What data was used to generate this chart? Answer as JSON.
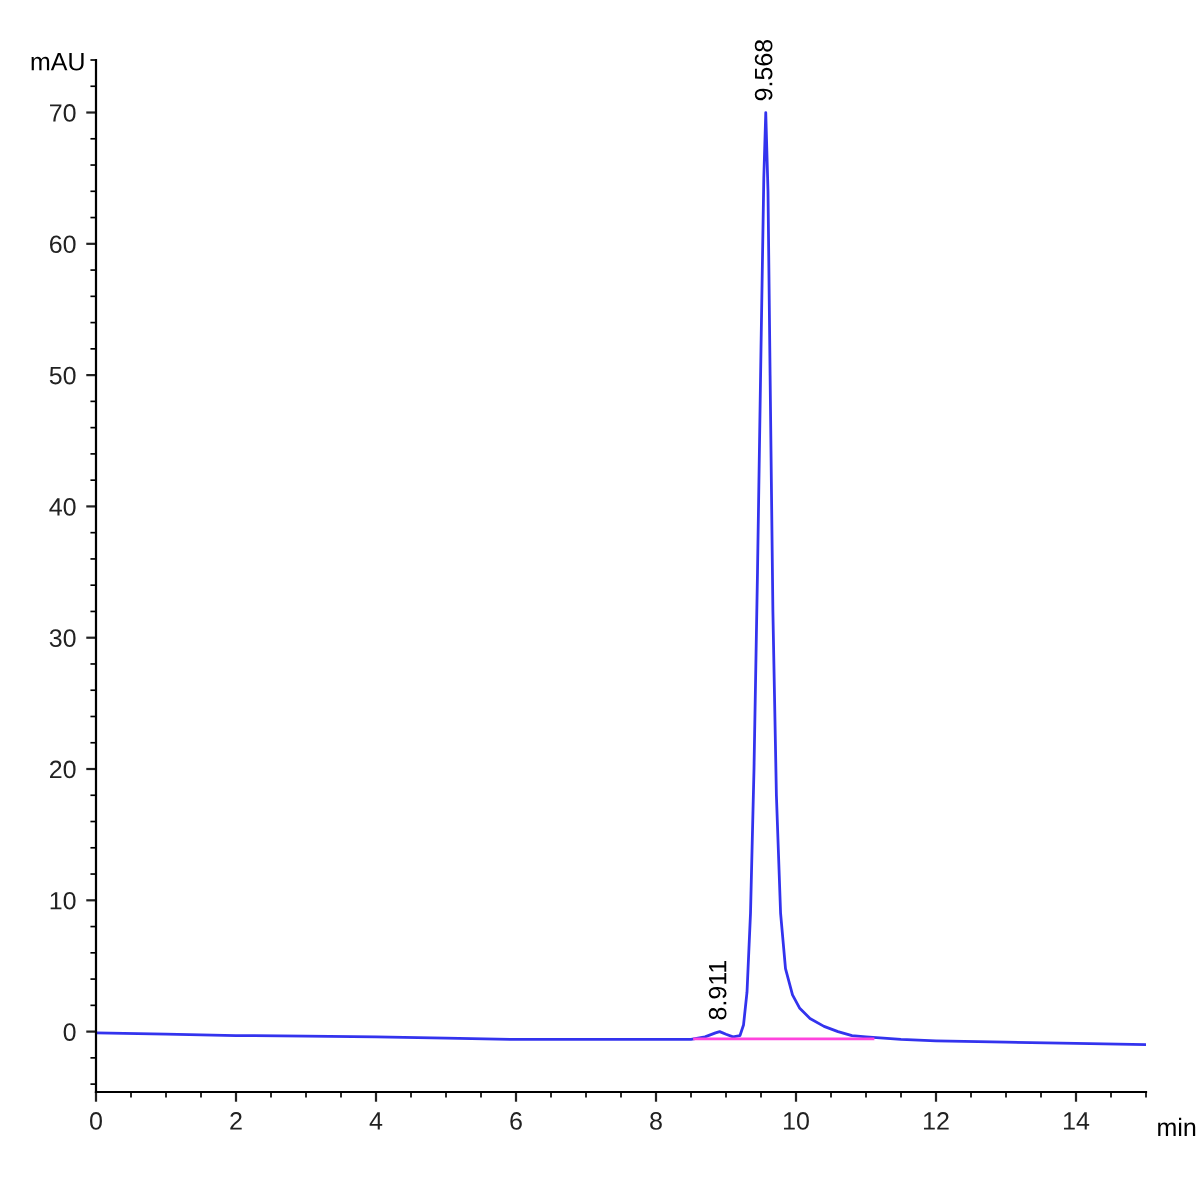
{
  "chart_data": {
    "type": "line",
    "xlabel": "min",
    "ylabel": "mAU",
    "xlim": [
      0,
      15
    ],
    "ylim": [
      -4.6,
      74
    ],
    "xticks": [
      0,
      2,
      4,
      6,
      8,
      10,
      12,
      14
    ],
    "yticks": [
      0,
      10,
      20,
      30,
      40,
      50,
      60,
      70
    ],
    "grid": false,
    "legend": false,
    "line_style": "solid",
    "marker": "none",
    "series": [
      {
        "color": "#3333ee",
        "x": [
          0,
          1,
          2,
          3,
          4,
          5,
          6,
          7,
          8,
          8.5,
          8.7,
          8.85,
          8.91,
          9.0,
          9.1,
          9.2,
          9.25,
          9.3,
          9.35,
          9.4,
          9.45,
          9.5,
          9.54,
          9.568,
          9.6,
          9.63,
          9.67,
          9.72,
          9.78,
          9.85,
          9.95,
          10.05,
          10.2,
          10.4,
          10.6,
          10.8,
          11.0,
          11.5,
          12,
          13,
          14,
          15
        ],
        "values": [
          -0.1,
          -0.2,
          -0.3,
          -0.35,
          -0.4,
          -0.5,
          -0.6,
          -0.6,
          -0.6,
          -0.6,
          -0.4,
          -0.1,
          0.0,
          -0.2,
          -0.4,
          -0.3,
          0.5,
          3,
          9,
          20,
          35,
          52,
          65,
          70,
          64,
          50,
          32,
          18,
          9,
          4.8,
          2.8,
          1.8,
          1.0,
          0.4,
          0.0,
          -0.3,
          -0.4,
          -0.6,
          -0.7,
          -0.8,
          -0.9,
          -1.0
        ]
      },
      {
        "color": "#ff44dd",
        "x": [
          8.55,
          11.1
        ],
        "values": [
          -0.55,
          -0.55
        ]
      }
    ],
    "annotations": [
      {
        "text": "8.911",
        "x": 8.911,
        "y": 0.0
      },
      {
        "text": "9.568",
        "x": 9.568,
        "y": 70
      }
    ]
  }
}
